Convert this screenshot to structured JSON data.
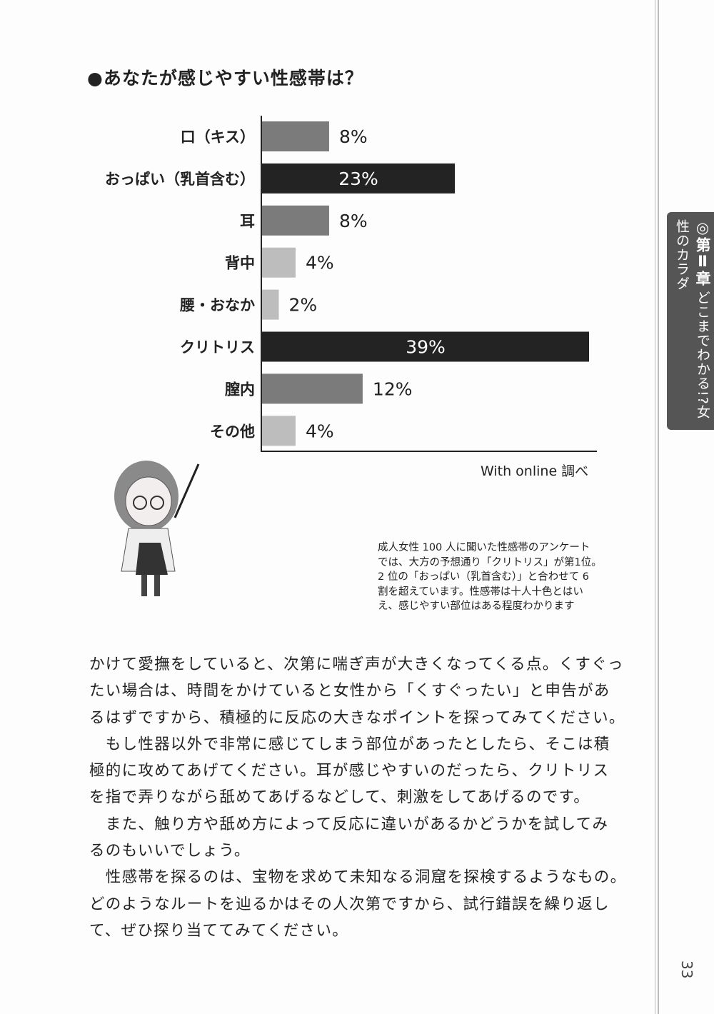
{
  "chart_data": {
    "type": "bar",
    "orientation": "horizontal",
    "title": "●あなたが感じやすい性感帯は？",
    "categories": [
      "口（キス）",
      "おっぱい（乳首含む）",
      "耳",
      "背中",
      "腰・おなか",
      "クリトリス",
      "膣内",
      "その他"
    ],
    "values": [
      8,
      23,
      8,
      4,
      2,
      39,
      12,
      4
    ],
    "labels": [
      "8%",
      "23%",
      "8%",
      "4%",
      "2%",
      "39%",
      "12%",
      "4%"
    ],
    "unit": "%",
    "colors": [
      "#7b7b7b",
      "#232323",
      "#7b7b7b",
      "#bdbdbd",
      "#bdbdbd",
      "#232323",
      "#7b7b7b",
      "#bdbdbd"
    ],
    "source": "With online 調べ",
    "grid": false
  },
  "caption": "成人女性 100 人に聞いた性感帯のアンケートでは、大方の予想通り「クリトリス」が第1位。2 位の「おっぱい（乳首含む）」と合わせて 6 割を超えています。性感帯は十人十色とはいえ、感じやすい部位はある程度わかります",
  "caption_lines": [
    "成人女性 100 人に聞いた性感帯のアンケート",
    "では、大方の予想通り「クリトリス」が第1位。",
    "2 位の「おっぱい（乳首含む）」と合わせて 6",
    "割を超えています。性感帯は十人十色とはい",
    "え、感じやすい部位はある程度わかります"
  ],
  "body_lines": [
    "かけて愛撫をしていると、次第に喘ぎ声が大きくなってくる点。くすぐっ",
    "たい場合は、時間をかけていると女性から「くすぐったい」と申告があ",
    "るはずですから、積極的に反応の大きなポイントを探ってみてください。",
    "　もし性器以外で非常に感じてしまう部位があったとしたら、そこは積",
    "極的に攻めてあげてください。耳が感じやすいのだったら、クリトリス",
    "を指で弄りながら舐めてあげるなどして、刺激をしてあげるのです。",
    "　また、触り方や舐め方によって反応に違いがあるかどうかを試してみ",
    "るのもいいでしょう。",
    "　性感帯を探るのは、宝物を求めて未知なる洞窟を探検するようなもの。",
    "どのようなルートを辿るかはその人次第ですから、試行錯誤を繰り返し",
    "て、ぜひ探り当ててみてください。"
  ],
  "chapter_tab": {
    "mark": "◎",
    "chapter": "第Ⅱ章",
    "subtitle": "どこまでわかる!?女性のカラダ"
  },
  "page_number": "33"
}
